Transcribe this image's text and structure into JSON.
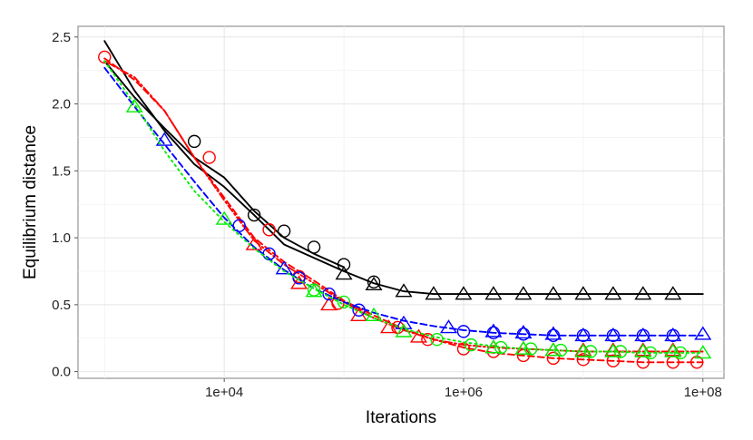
{
  "chart_data": {
    "type": "line",
    "title": "",
    "xlabel": "Iterations",
    "ylabel": "Equilibrium distance",
    "x_scale": "log10",
    "xlim": [
      600,
      150000000
    ],
    "ylim": [
      -0.05,
      2.58
    ],
    "x_ticks": [
      10000,
      1000000,
      100000000
    ],
    "x_tick_labels": [
      "1e+04",
      "1e+06",
      "1e+08"
    ],
    "y_ticks": [
      0,
      0.5,
      1,
      1.5,
      2,
      2.5
    ],
    "y_tick_labels": [
      "0.0",
      "0.5",
      "1.0",
      "1.5",
      "2.0",
      "2.5"
    ],
    "grid": true,
    "legend": "none",
    "series": [
      {
        "color": "#000000",
        "linetype": "solid",
        "x": [
          1000,
          1778,
          3162,
          5623,
          10000,
          17783,
          31623,
          56234,
          100000,
          177828,
          316228,
          562341,
          1000000,
          1778279,
          3162278,
          5623413,
          10000000,
          17782794,
          31622777,
          56234133,
          100000000
        ],
        "y": [
          2.47,
          2.1,
          1.8,
          1.55,
          1.38,
          1.17,
          0.95,
          0.85,
          0.75,
          0.66,
          0.6,
          0.58,
          0.58,
          0.58,
          0.58,
          0.58,
          0.58,
          0.58,
          0.58,
          0.58,
          0.58
        ],
        "markers": [
          {
            "shape": "circle",
            "x": [
              5623,
              17783,
              31623,
              56234,
              100000,
              177828
            ],
            "y": [
              1.72,
              1.17,
              1.05,
              0.93,
              0.8,
              0.67
            ]
          },
          {
            "shape": "triangle",
            "x": [
              100000,
              177828,
              316228,
              562341,
              1000000,
              1778279,
              3162278,
              5623413,
              10000000,
              17782794,
              31622777,
              56234133
            ],
            "y": [
              0.73,
              0.65,
              0.6,
              0.58,
              0.58,
              0.58,
              0.58,
              0.58,
              0.58,
              0.58,
              0.58,
              0.58
            ]
          }
        ]
      },
      {
        "color": "#000000",
        "linetype": "solid",
        "x": [
          1000,
          1778,
          3162,
          5623,
          10000,
          17783,
          31623,
          56234,
          100000
        ],
        "y": [
          2.32,
          2.05,
          1.82,
          1.6,
          1.45,
          1.2,
          1.0,
          0.88,
          0.78
        ]
      },
      {
        "color": "#ff0000",
        "linetype": "dashed",
        "x": [
          1000,
          1778,
          3162,
          5623,
          10000,
          17783,
          31623,
          56234,
          100000,
          177828,
          316228,
          562341,
          1000000,
          1778279,
          3162278,
          5623413,
          10000000,
          17782794,
          31622777,
          56234133,
          100000000
        ],
        "y": [
          2.34,
          2.18,
          1.95,
          1.6,
          1.3,
          1.0,
          0.82,
          0.68,
          0.53,
          0.42,
          0.32,
          0.24,
          0.18,
          0.14,
          0.12,
          0.1,
          0.09,
          0.08,
          0.07,
          0.07,
          0.07
        ],
        "markers": [
          {
            "shape": "circle",
            "x": [
              1000,
              7499,
              23714,
              42170,
              89125,
              281838,
              501187,
              1000000,
              1778279,
              3162278,
              5623413,
              10000000,
              17782794,
              31622777,
              56234133,
              89125094
            ],
            "y": [
              2.35,
              1.6,
              1.06,
              0.71,
              0.51,
              0.33,
              0.24,
              0.17,
              0.15,
              0.12,
              0.1,
              0.09,
              0.08,
              0.07,
              0.07,
              0.07
            ]
          }
        ]
      },
      {
        "color": "#ff0000",
        "linetype": "dotdash",
        "x": [
          1000,
          1778,
          3162,
          5623,
          10000,
          17783,
          31623,
          56234,
          100000,
          177828,
          316228,
          562341,
          1000000,
          1778279,
          3162278,
          5623413,
          10000000,
          17782794,
          31622777,
          56234133,
          100000000
        ],
        "y": [
          2.32,
          2.2,
          1.95,
          1.6,
          1.28,
          0.98,
          0.8,
          0.66,
          0.52,
          0.4,
          0.31,
          0.24,
          0.2,
          0.18,
          0.17,
          0.16,
          0.15,
          0.15,
          0.15,
          0.15,
          0.15
        ],
        "markers": [
          {
            "shape": "triangle",
            "x": [
              17783,
              42170,
              74989,
              133352,
              237137,
              421697,
              1778279,
              3162278,
              5623413,
              10000000,
              17782794,
              31622777,
              56234133
            ],
            "y": [
              0.95,
              0.66,
              0.5,
              0.42,
              0.33,
              0.26,
              0.18,
              0.17,
              0.16,
              0.16,
              0.16,
              0.16,
              0.16
            ]
          }
        ]
      },
      {
        "color": "#0000ff",
        "linetype": "dashed",
        "x": [
          1000,
          1778,
          3162,
          5623,
          10000,
          17783,
          31623,
          56234,
          100000,
          177828,
          316228,
          562341,
          1000000,
          1778279,
          3162278,
          5623413,
          10000000,
          17782794,
          31622777,
          56234133,
          100000000
        ],
        "y": [
          2.27,
          1.98,
          1.7,
          1.42,
          1.15,
          0.93,
          0.76,
          0.62,
          0.52,
          0.44,
          0.38,
          0.34,
          0.31,
          0.29,
          0.28,
          0.27,
          0.27,
          0.27,
          0.27,
          0.27,
          0.27
        ],
        "markers": [
          {
            "shape": "circle",
            "x": [
              13335,
              23714,
              42170,
              74989,
              133352,
              1000000,
              1778279,
              3162278,
              5623413,
              10000000,
              17782794,
              31622777,
              56234133
            ],
            "y": [
              1.09,
              0.88,
              0.7,
              0.58,
              0.46,
              0.3,
              0.29,
              0.28,
              0.27,
              0.27,
              0.27,
              0.27,
              0.27
            ]
          },
          {
            "shape": "triangle",
            "x": [
              3162,
              31623,
              316228,
              749894,
              1778279,
              3162278,
              5623413,
              10000000,
              17782794,
              31622777,
              56234133,
              100000000
            ],
            "y": [
              1.73,
              0.77,
              0.36,
              0.33,
              0.3,
              0.29,
              0.28,
              0.27,
              0.27,
              0.27,
              0.27,
              0.28
            ]
          }
        ]
      },
      {
        "color": "#00ee00",
        "linetype": "dotted",
        "x": [
          1000,
          1778,
          3162,
          5623,
          10000,
          17783,
          31623,
          56234,
          100000,
          177828,
          316228,
          562341,
          1000000,
          1778279,
          3162278,
          5623413,
          10000000,
          17782794,
          31622777,
          56234133,
          100000000
        ],
        "y": [
          2.32,
          2.0,
          1.65,
          1.35,
          1.12,
          0.92,
          0.75,
          0.62,
          0.5,
          0.4,
          0.32,
          0.26,
          0.22,
          0.19,
          0.17,
          0.16,
          0.15,
          0.15,
          0.14,
          0.14,
          0.14
        ],
        "markers": [
          {
            "shape": "circle",
            "x": [
              56234,
              100000,
              599484,
              1154782,
              2053525,
              3651741,
              6493816,
              11547820,
              20535250,
              36517413,
              64938163
            ],
            "y": [
              0.61,
              0.52,
              0.24,
              0.2,
              0.18,
              0.17,
              0.16,
              0.15,
              0.15,
              0.14,
              0.14
            ]
          },
          {
            "shape": "triangle",
            "x": [
              1778,
              10000,
              56234,
              177828,
              316228,
              1778279,
              3162278,
              5623413,
              10000000,
              17782794,
              31622777,
              56234133,
              100000000
            ],
            "y": [
              1.98,
              1.14,
              0.6,
              0.42,
              0.3,
              0.18,
              0.17,
              0.16,
              0.15,
              0.15,
              0.15,
              0.15,
              0.14
            ]
          }
        ]
      }
    ]
  }
}
